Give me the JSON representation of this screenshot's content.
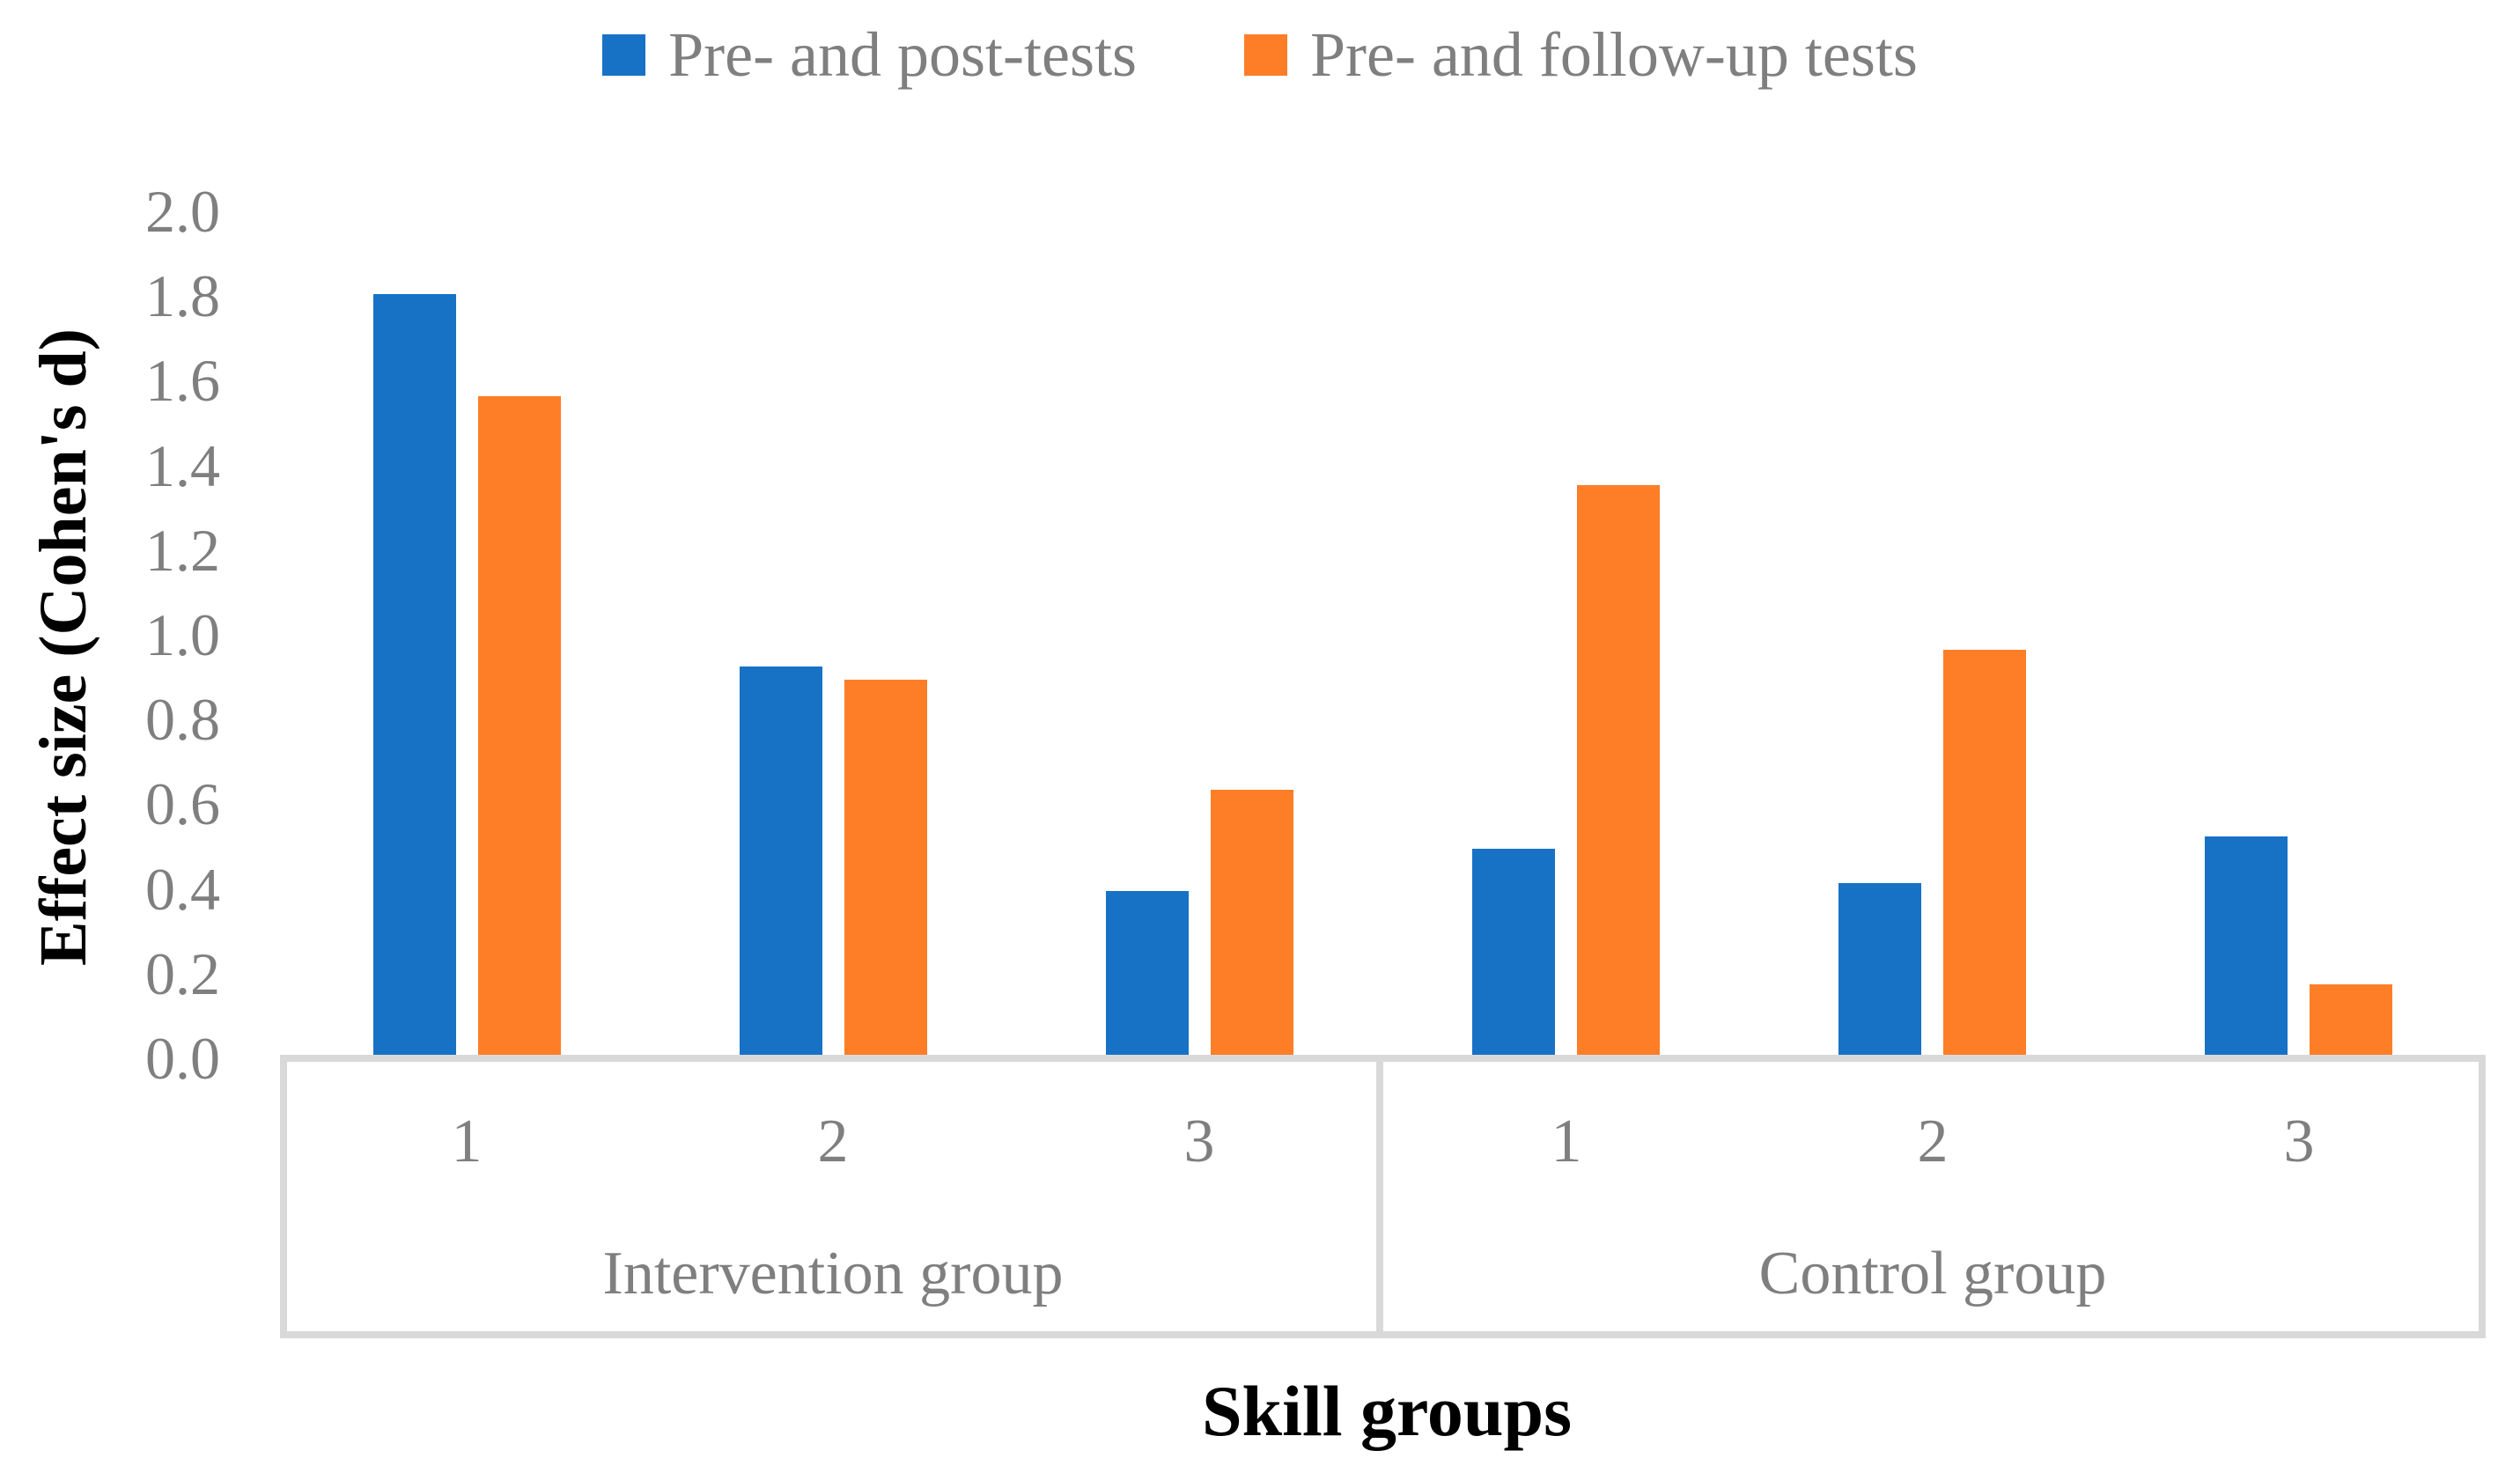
{
  "legend": {
    "position": "top-center",
    "items": [
      {
        "label": "Pre- and post-tests",
        "color": "#1772C6"
      },
      {
        "label": "Pre- and follow-up tests",
        "color": "#FD7E27"
      }
    ]
  },
  "y_axis": {
    "title": "Effect size (Cohen's d)",
    "ticks": [
      "2.0",
      "1.8",
      "1.6",
      "1.4",
      "1.2",
      "1.0",
      "0.8",
      "0.6",
      "0.4",
      "0.2",
      "0.0"
    ]
  },
  "x_axis": {
    "title": "Skill groups",
    "groups": [
      {
        "label": "Intervention group",
        "categories": [
          "1",
          "2",
          "3"
        ]
      },
      {
        "label": "Control group",
        "categories": [
          "1",
          "2",
          "3"
        ]
      }
    ]
  },
  "colors": {
    "series_blue": "#1772C6",
    "series_orange": "#FD7E27",
    "axis_line": "#D9D9D9",
    "tick_text": "#7F7F7F",
    "title_text": "#000000"
  },
  "chart_data": {
    "type": "bar",
    "title": "",
    "xlabel": "Skill groups",
    "ylabel": "Effect size (Cohen's d)",
    "ylim": [
      0.0,
      2.0
    ],
    "ytick_interval": 0.2,
    "grid": false,
    "legend_position": "top-center",
    "group_labels": [
      "Intervention group",
      "Control group"
    ],
    "categories": [
      "1",
      "2",
      "3",
      "1",
      "2",
      "3"
    ],
    "series": [
      {
        "name": "Pre- and post-tests",
        "color": "#1772C6",
        "values": [
          1.8,
          0.92,
          0.39,
          0.49,
          0.41,
          0.52
        ]
      },
      {
        "name": "Pre- and follow-up tests",
        "color": "#FD7E27",
        "values": [
          1.56,
          0.89,
          0.63,
          1.35,
          0.96,
          0.17
        ]
      }
    ]
  }
}
